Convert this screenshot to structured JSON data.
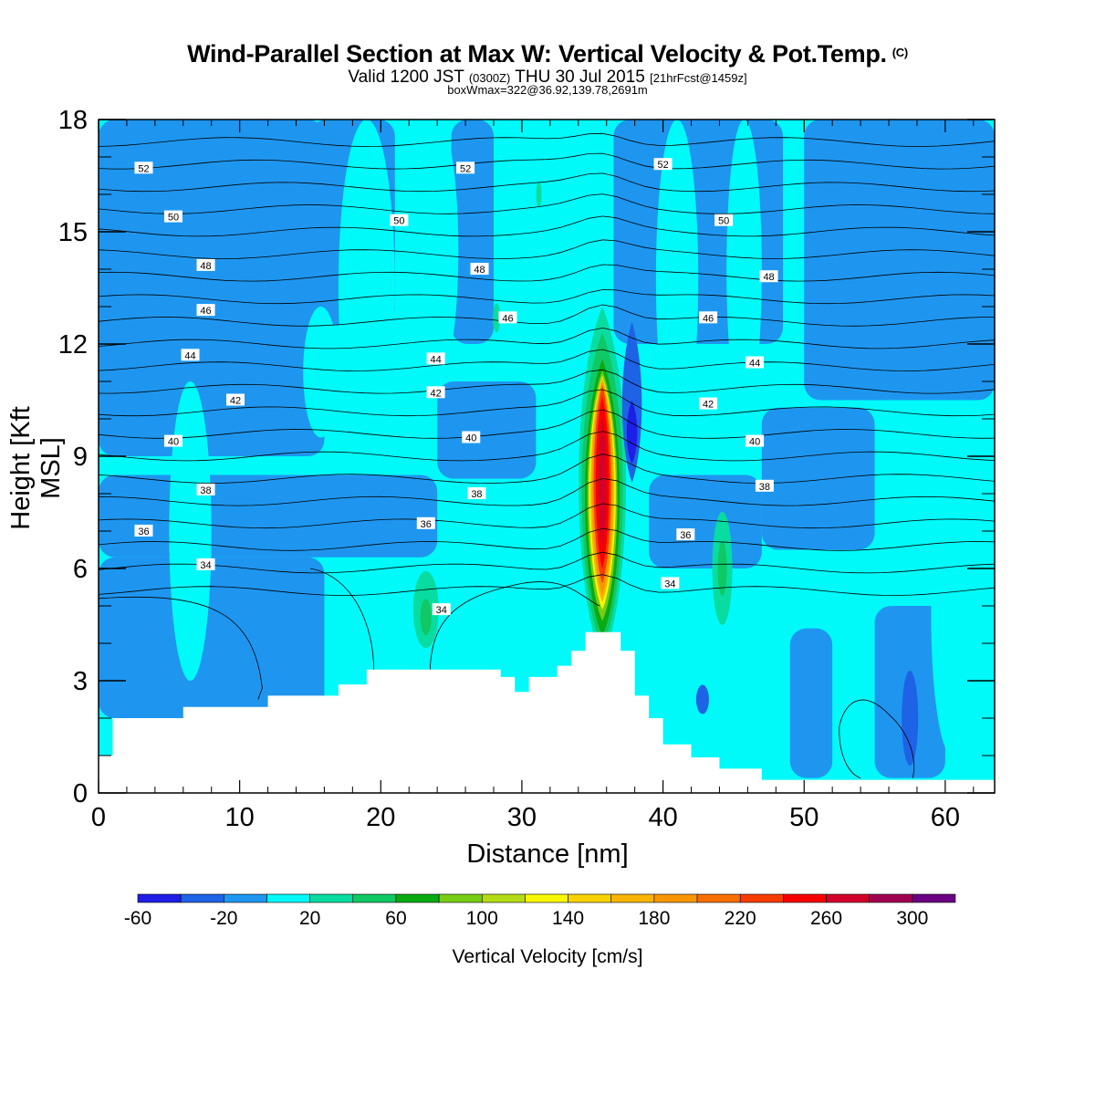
{
  "title": {
    "main": "Wind-Parallel Section at Max W: Vertical Velocity & Pot.Temp.",
    "main_units": "(C)",
    "valid_a": "Valid 1200 JST",
    "valid_zone": "(0300Z)",
    "valid_b": "THU 30 Jul 2015",
    "valid_fcst": "[21hrFcst@1459z]",
    "box": "boxWmax=322@36.92,139.78,2691m"
  },
  "chart_data": {
    "type": "heatmap",
    "xlabel": "Distance [nm]",
    "ylabel": "Height [Kft MSL]",
    "xlim": [
      0,
      63.5
    ],
    "ylim": [
      0,
      18
    ],
    "x_ticks": [
      "0",
      "10",
      "20",
      "30",
      "40",
      "50",
      "60"
    ],
    "y_ticks": [
      "0",
      "3",
      "6",
      "9",
      "12",
      "15",
      "18"
    ],
    "colorbar": {
      "label": "Vertical Velocity [cm/s]",
      "levels": [
        -60,
        -40,
        -20,
        0,
        20,
        40,
        60,
        80,
        100,
        120,
        140,
        160,
        180,
        200,
        220,
        240,
        260,
        280,
        300,
        320
      ],
      "tick_labels": [
        "-60",
        "-20",
        "20",
        "60",
        "100",
        "140",
        "180",
        "220",
        "260",
        "300"
      ],
      "colors": [
        "#1e1ee8",
        "#1e62e6",
        "#1e96f0",
        "#00fafa",
        "#08dca0",
        "#10c864",
        "#0aaa12",
        "#78cc14",
        "#b4dc14",
        "#f8f800",
        "#f8d200",
        "#f8b400",
        "#f89600",
        "#f86e00",
        "#f83c00",
        "#f80000",
        "#d2002a",
        "#a00050",
        "#6c0082"
      ]
    },
    "theta_contours": [
      {
        "label": "52",
        "value": 52,
        "height_kft": 16.8
      },
      {
        "label": "50",
        "value": 50,
        "height_kft": 15.5
      },
      {
        "label": "48",
        "value": 48,
        "height_kft": 14.2
      },
      {
        "label": "46",
        "value": 46,
        "height_kft": 12.9
      },
      {
        "label": "44",
        "value": 44,
        "height_kft": 11.7
      },
      {
        "label": "42",
        "value": 42,
        "height_kft": 10.5
      },
      {
        "label": "40",
        "value": 40,
        "height_kft": 9.3
      },
      {
        "label": "38",
        "value": 38,
        "height_kft": 8.1
      },
      {
        "label": "36",
        "value": 36,
        "height_kft": 7.0
      },
      {
        "label": "34",
        "value": 34,
        "height_kft": 6.0
      }
    ],
    "contour_label_positions": [
      {
        "label": "52",
        "x": 3.2,
        "y": 16.7
      },
      {
        "label": "52",
        "x": 26.0,
        "y": 16.7
      },
      {
        "label": "52",
        "x": 40.0,
        "y": 16.8
      },
      {
        "label": "50",
        "x": 5.3,
        "y": 15.4
      },
      {
        "label": "50",
        "x": 21.3,
        "y": 15.3
      },
      {
        "label": "50",
        "x": 44.3,
        "y": 15.3
      },
      {
        "label": "48",
        "x": 7.6,
        "y": 14.1
      },
      {
        "label": "48",
        "x": 27.0,
        "y": 14.0
      },
      {
        "label": "48",
        "x": 47.5,
        "y": 13.8
      },
      {
        "label": "46",
        "x": 7.6,
        "y": 12.9
      },
      {
        "label": "46",
        "x": 29.0,
        "y": 12.7
      },
      {
        "label": "46",
        "x": 43.2,
        "y": 12.7
      },
      {
        "label": "44",
        "x": 6.5,
        "y": 11.7
      },
      {
        "label": "44",
        "x": 23.9,
        "y": 11.6
      },
      {
        "label": "44",
        "x": 46.5,
        "y": 11.5
      },
      {
        "label": "42",
        "x": 9.7,
        "y": 10.5
      },
      {
        "label": "42",
        "x": 23.9,
        "y": 10.7
      },
      {
        "label": "42",
        "x": 43.2,
        "y": 10.4
      },
      {
        "label": "40",
        "x": 5.3,
        "y": 9.4
      },
      {
        "label": "40",
        "x": 26.4,
        "y": 9.5
      },
      {
        "label": "40",
        "x": 46.5,
        "y": 9.4
      },
      {
        "label": "38",
        "x": 7.6,
        "y": 8.1
      },
      {
        "label": "38",
        "x": 26.8,
        "y": 8.0
      },
      {
        "label": "38",
        "x": 47.2,
        "y": 8.2
      },
      {
        "label": "36",
        "x": 3.2,
        "y": 7.0
      },
      {
        "label": "36",
        "x": 23.2,
        "y": 7.2
      },
      {
        "label": "36",
        "x": 41.6,
        "y": 6.9
      },
      {
        "label": "34",
        "x": 7.6,
        "y": 6.1
      },
      {
        "label": "34",
        "x": 24.3,
        "y": 4.9
      },
      {
        "label": "34",
        "x": 40.5,
        "y": 5.6
      }
    ],
    "updraft_core": {
      "x_nm": 35.7,
      "base_kft": 5.3,
      "top_kft": 11.2,
      "max_cm_s": 322
    },
    "downdraft_core": {
      "x_nm": 37.8,
      "base_kft": 8.3,
      "top_kft": 12.6,
      "min_cm_s": -45
    },
    "terrain": [
      {
        "x": 0,
        "h": 1.0
      },
      {
        "x": 1,
        "h": 2.0
      },
      {
        "x": 6,
        "h": 2.3
      },
      {
        "x": 12,
        "h": 2.6
      },
      {
        "x": 17,
        "h": 2.9
      },
      {
        "x": 19,
        "h": 3.3
      },
      {
        "x": 28.5,
        "h": 3.1
      },
      {
        "x": 29.5,
        "h": 2.7
      },
      {
        "x": 30.5,
        "h": 3.1
      },
      {
        "x": 32.5,
        "h": 3.4
      },
      {
        "x": 33.5,
        "h": 3.8
      },
      {
        "x": 34.5,
        "h": 4.3
      },
      {
        "x": 37,
        "h": 3.8
      },
      {
        "x": 38,
        "h": 2.6
      },
      {
        "x": 39,
        "h": 2.0
      },
      {
        "x": 40,
        "h": 1.3
      },
      {
        "x": 42,
        "h": 0.95
      },
      {
        "x": 44,
        "h": 0.65
      },
      {
        "x": 47,
        "h": 0.35
      },
      {
        "x": 63.5,
        "h": 0.35
      }
    ]
  }
}
